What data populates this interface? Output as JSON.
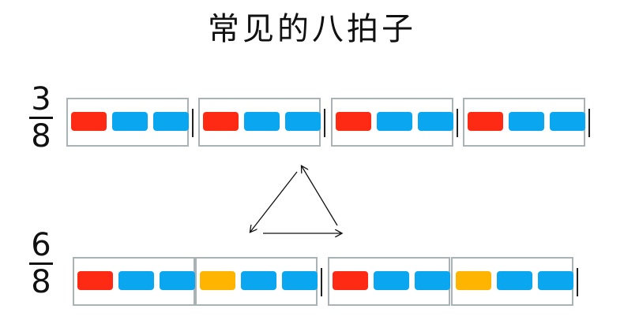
{
  "title": "常见的八拍子",
  "colors": {
    "strong": "#ff2a14",
    "weak": "#0aa6f0",
    "medium": "#ffb400",
    "frame": "#a9b3b6"
  },
  "rows": [
    {
      "time_signature": {
        "numerator": "3",
        "denominator": "8"
      },
      "measures": [
        {
          "groups": [
            [
              "strong",
              "weak",
              "weak"
            ]
          ]
        },
        {
          "groups": [
            [
              "strong",
              "weak",
              "weak"
            ]
          ]
        },
        {
          "groups": [
            [
              "strong",
              "weak",
              "weak"
            ]
          ]
        },
        {
          "groups": [
            [
              "strong",
              "weak",
              "weak"
            ]
          ]
        }
      ]
    },
    {
      "time_signature": {
        "numerator": "6",
        "denominator": "8"
      },
      "measures": [
        {
          "groups": [
            [
              "strong",
              "weak",
              "weak"
            ],
            [
              "medium",
              "weak",
              "weak"
            ]
          ]
        },
        {
          "groups": [
            [
              "strong",
              "weak",
              "weak"
            ],
            [
              "medium",
              "weak",
              "weak"
            ]
          ]
        }
      ]
    }
  ]
}
